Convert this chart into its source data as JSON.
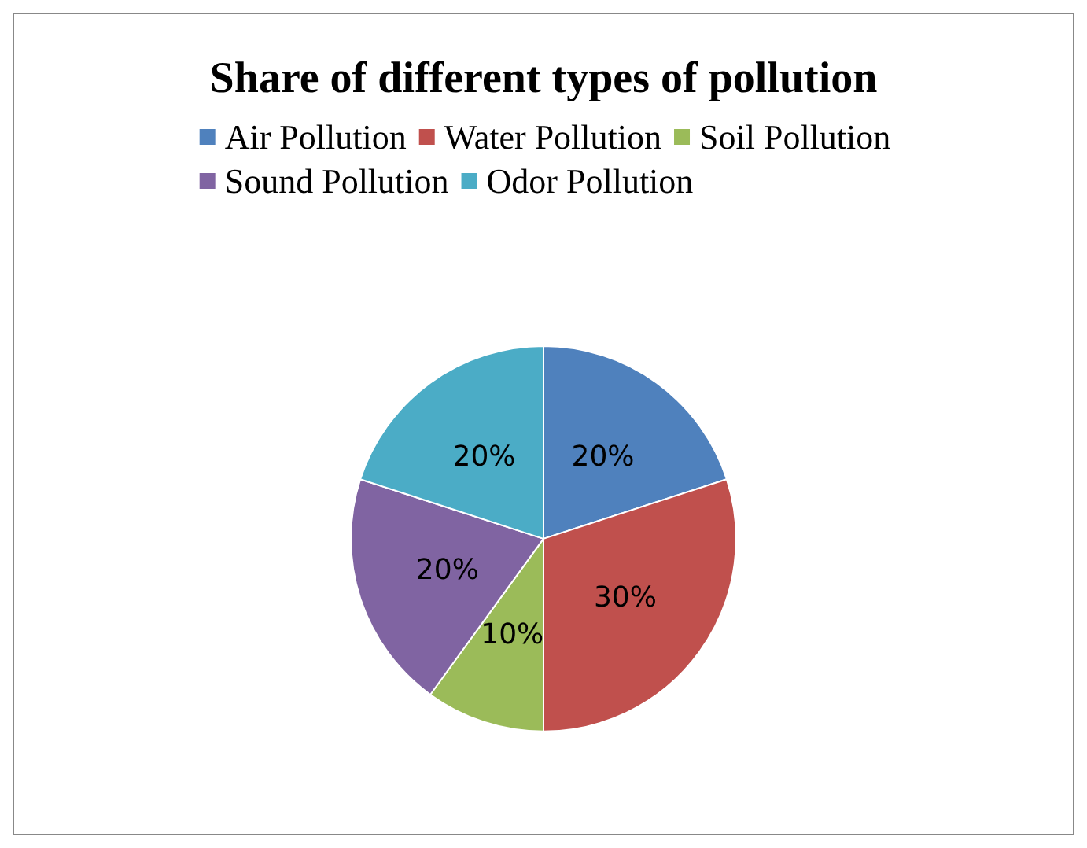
{
  "chart_data": {
    "type": "pie",
    "title": "Share of different types of pollution",
    "categories": [
      "Air Pollution",
      "Water Pollution",
      "Soil Pollution",
      "Sound Pollution",
      "Odor Pollution"
    ],
    "values": [
      20,
      30,
      10,
      20,
      20
    ],
    "value_labels": [
      "20%",
      "30%",
      "10%",
      "20%",
      "20%"
    ],
    "colors": [
      "#4f81bd",
      "#c0504d",
      "#9bbb59",
      "#8064a2",
      "#4bacc6"
    ],
    "legend": "top"
  }
}
